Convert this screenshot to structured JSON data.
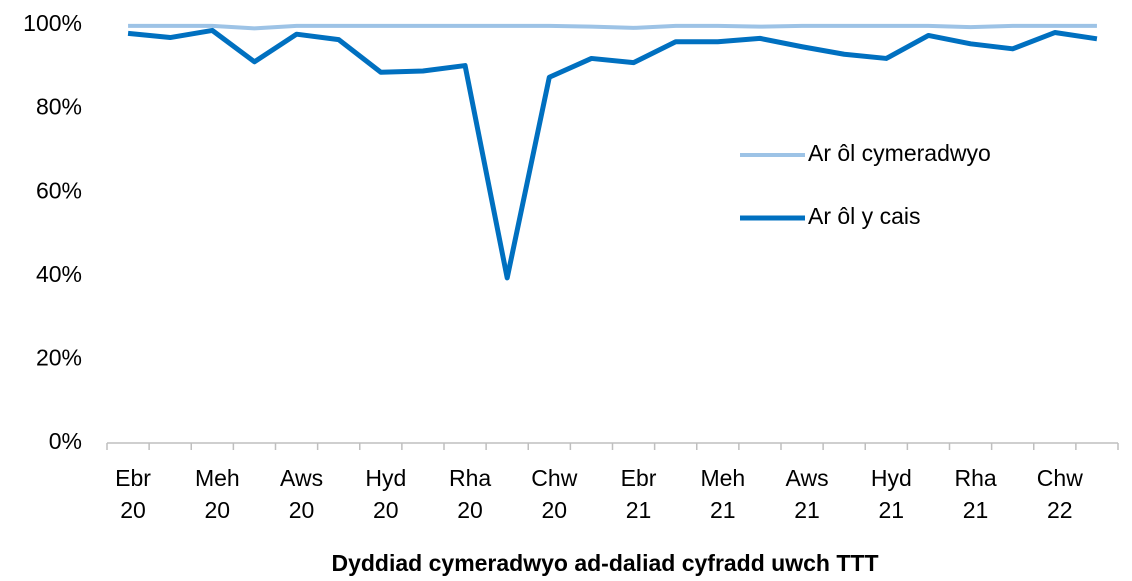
{
  "chart_data": {
    "type": "line",
    "x_label": "Dyddiad cymeradwyo ad-daliad cyfradd uwch TTT",
    "categories": [
      "Ebr 20",
      null,
      "Meh 20",
      null,
      "Aws 20",
      null,
      "Hyd 20",
      null,
      "Rha 20",
      null,
      "Chw 20",
      null,
      "Ebr 21",
      null,
      "Meh 21",
      null,
      "Aws 21",
      null,
      "Hyd 21",
      null,
      "Rha 21",
      null,
      "Chw 22",
      null
    ],
    "series": [
      {
        "name": "Ar ôl cymeradwyo",
        "color": "#9dc3e6",
        "values": [
          99.8,
          99.8,
          99.8,
          99.2,
          99.8,
          99.8,
          99.8,
          99.8,
          99.8,
          99.8,
          99.8,
          99.6,
          99.3,
          99.8,
          99.8,
          99.6,
          99.8,
          99.8,
          99.8,
          99.8,
          99.5,
          99.8,
          99.8,
          99.8
        ]
      },
      {
        "name": "Ar ôl y cais",
        "color": "#0070c0",
        "values": [
          98,
          97,
          98.7,
          91.2,
          97.8,
          96.5,
          88.7,
          89,
          90.3,
          39.5,
          87.5,
          92,
          91,
          96,
          96,
          96.8,
          94.8,
          93,
          92,
          97.5,
          95.5,
          94.3,
          98.2,
          96.7
        ]
      }
    ],
    "ylim": [
      0,
      100
    ],
    "yticks": [
      {
        "value": 0,
        "label": "0%"
      },
      {
        "value": 20,
        "label": "20%"
      },
      {
        "value": 40,
        "label": "40%"
      },
      {
        "value": 60,
        "label": "60%"
      },
      {
        "value": 80,
        "label": "80%"
      },
      {
        "value": 100,
        "label": "100%"
      }
    ],
    "legend": "right"
  }
}
